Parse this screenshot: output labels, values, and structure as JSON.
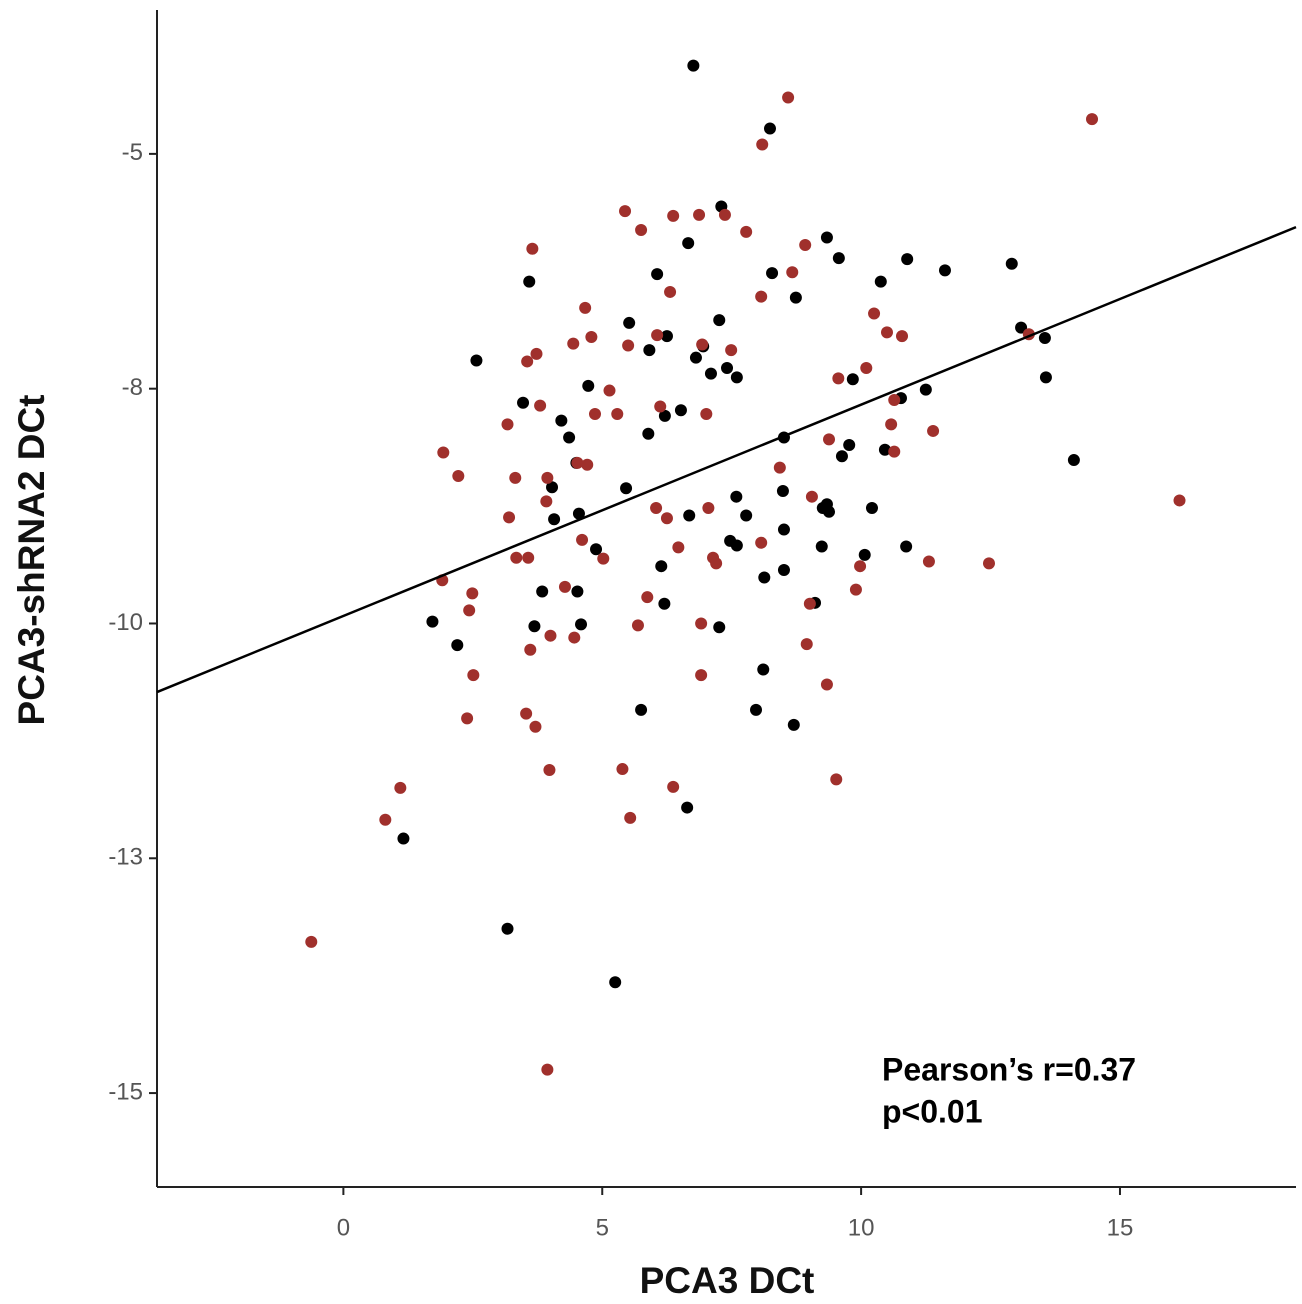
{
  "chart_data": {
    "type": "scatter",
    "x_label": "PCA3 DCt",
    "y_label": "PCA3-shRNA2 DCt",
    "annotations": [
      "Pearson’s r=0.37",
      "p<0.01"
    ],
    "xlim": [
      -3.6,
      18.4
    ],
    "ylim": [
      -16,
      -3.5
    ],
    "xticks": [
      0,
      5,
      10,
      15
    ],
    "yticks": [
      -5,
      {
        "value": -7.5,
        "label": "-8"
      },
      -10,
      {
        "value": -12.5,
        "label": "-13"
      },
      -15
    ],
    "fit_line": {
      "x": [
        -3.6,
        18.4
      ],
      "y": [
        -10.73,
        -5.78
      ],
      "color": "#000000"
    },
    "series": [
      {
        "color": "#000000",
        "x": [
          6.76,
          8.24,
          7.3,
          6.66,
          9.34,
          3.59,
          8.28,
          6.06,
          8.74,
          9.57,
          10.89,
          11.62,
          10.38,
          12.91,
          13.09,
          13.55,
          5.52,
          7.26,
          6.25,
          6.81,
          5.91,
          6.95,
          7.1,
          7.41,
          7.6,
          2.57,
          4.73,
          13.57,
          11.25,
          10.77,
          9.84,
          3.47,
          4.21,
          4.36,
          6.21,
          6.52,
          5.89,
          4.5,
          8.51,
          9.77,
          10.46,
          9.63,
          14.11,
          4.03,
          5.46,
          4.07,
          4.55,
          7.59,
          8.49,
          6.68,
          7.78,
          9.34,
          9.26,
          9.38,
          10.21,
          4.88,
          7.47,
          7.6,
          9.24,
          10.87,
          10.07,
          8.51,
          8.51,
          6.14,
          8.13,
          3.84,
          4.52,
          9.11,
          6.2,
          1.72,
          3.69,
          4.59,
          7.26,
          2.2,
          8.11,
          5.75,
          7.97,
          8.7,
          6.64,
          1.16,
          3.17,
          5.25
        ],
        "values": [
          -4.06,
          -4.73,
          -5.56,
          -5.95,
          -5.89,
          -6.36,
          -6.27,
          -6.28,
          -6.53,
          -6.11,
          -6.12,
          -6.24,
          -6.36,
          -6.17,
          -6.85,
          -6.96,
          -6.8,
          -6.77,
          -6.94,
          -7.17,
          -7.09,
          -7.05,
          -7.34,
          -7.28,
          -7.38,
          -7.2,
          -7.47,
          -7.38,
          -7.51,
          -7.6,
          -7.4,
          -7.65,
          -7.84,
          -8.02,
          -7.79,
          -7.73,
          -7.98,
          -8.29,
          -8.02,
          -8.1,
          -8.15,
          -8.22,
          -8.26,
          -8.55,
          -8.56,
          -8.89,
          -8.83,
          -8.65,
          -8.59,
          -8.85,
          -8.85,
          -8.73,
          -8.77,
          -8.81,
          -8.77,
          -9.21,
          -9.12,
          -9.17,
          -9.18,
          -9.18,
          -9.27,
          -9.0,
          -9.43,
          -9.39,
          -9.51,
          -9.66,
          -9.66,
          -9.78,
          -9.79,
          -9.98,
          -10.03,
          -10.01,
          -10.04,
          -10.23,
          -10.49,
          -10.92,
          -10.92,
          -11.08,
          -11.96,
          -12.29,
          -13.25,
          -13.82
        ]
      },
      {
        "color": "#a0302c",
        "x": [
          8.59,
          14.46,
          8.09,
          5.44,
          6.87,
          6.37,
          5.75,
          7.37,
          7.78,
          8.92,
          3.65,
          8.67,
          8.07,
          6.31,
          4.67,
          10.25,
          10.5,
          10.79,
          3.55,
          3.73,
          4.44,
          4.79,
          5.5,
          6.06,
          7.49,
          6.93,
          13.24,
          5.14,
          9.56,
          10.1,
          10.64,
          10.58,
          11.39,
          3.17,
          3.8,
          4.86,
          5.29,
          6.12,
          7.01,
          9.38,
          1.93,
          2.22,
          3.32,
          3.94,
          4.52,
          4.71,
          10.64,
          8.43,
          16.15,
          3.92,
          3.2,
          4.61,
          6.04,
          6.25,
          6.47,
          7.05,
          7.14,
          7.2,
          8.07,
          9.05,
          1.91,
          2.49,
          3.34,
          3.57,
          5.02,
          9.98,
          11.31,
          12.47,
          2.43,
          4.28,
          5.87,
          9.01,
          9.9,
          5.69,
          6.91,
          4.0,
          4.46,
          3.61,
          2.51,
          6.91,
          8.95,
          2.39,
          3.53,
          3.71,
          9.34,
          3.98,
          5.39,
          6.37,
          9.52,
          1.1,
          0.81,
          5.54,
          -0.62,
          3.94
        ],
        "values": [
          -4.4,
          -4.63,
          -4.9,
          -5.61,
          -5.65,
          -5.66,
          -5.81,
          -5.65,
          -5.83,
          -5.97,
          -6.01,
          -6.26,
          -6.52,
          -6.47,
          -6.64,
          -6.7,
          -6.9,
          -6.94,
          -7.21,
          -7.13,
          -7.02,
          -6.95,
          -7.04,
          -6.93,
          -7.09,
          -7.03,
          -6.92,
          -7.52,
          -7.39,
          -7.28,
          -7.62,
          -7.88,
          -7.95,
          -7.88,
          -7.68,
          -7.77,
          -7.77,
          -7.69,
          -7.77,
          -8.04,
          -8.18,
          -8.43,
          -8.45,
          -8.45,
          -8.29,
          -8.31,
          -8.17,
          -8.34,
          -8.69,
          -8.7,
          -8.87,
          -9.11,
          -8.77,
          -8.88,
          -9.19,
          -8.77,
          -9.3,
          -9.36,
          -9.14,
          -8.65,
          -9.54,
          -9.68,
          -9.3,
          -9.3,
          -9.31,
          -9.39,
          -9.34,
          -9.36,
          -9.86,
          -9.61,
          -9.72,
          -9.79,
          -9.64,
          -10.02,
          -10.0,
          -10.13,
          -10.15,
          -10.28,
          -10.55,
          -10.55,
          -10.22,
          -11.01,
          -10.96,
          -11.1,
          -10.65,
          -11.56,
          -11.55,
          -11.74,
          -11.66,
          -11.75,
          -12.09,
          -12.07,
          -13.39,
          -14.75
        ]
      }
    ]
  }
}
